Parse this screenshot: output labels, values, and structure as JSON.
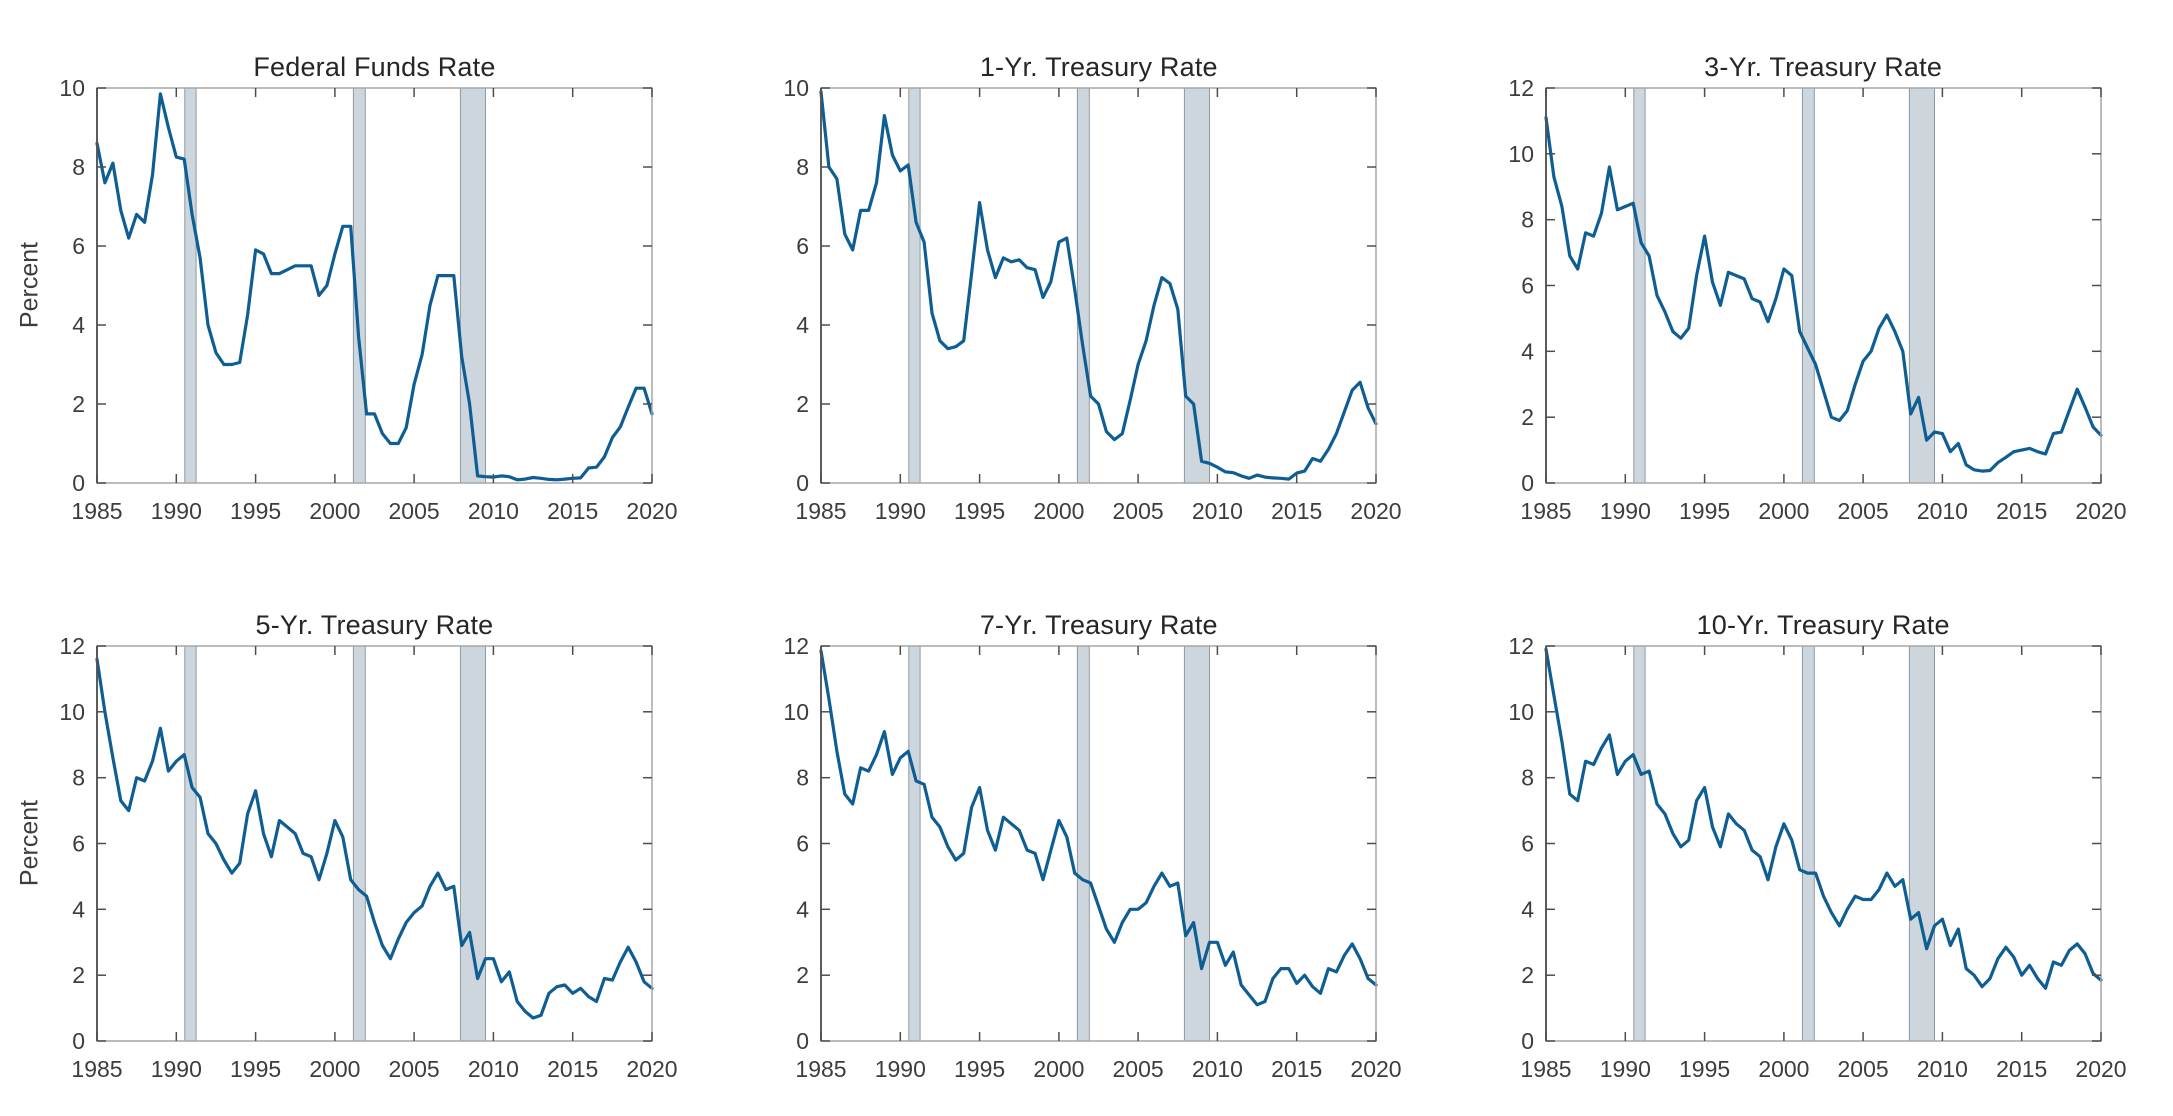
{
  "figure": {
    "ylabel": "Percent",
    "colors": {
      "background": "#ffffff",
      "line": "#0e5e94",
      "band_fill": "#ccd6dc",
      "band_edge": "#8e99a2",
      "box": "#a6a6a6",
      "spine": "#4f4f4f",
      "tick": "#4d4d4d",
      "text": "#3d3d3d",
      "title": "#262626"
    },
    "recession_bands": [
      [
        1990.54,
        1991.25
      ],
      [
        2001.17,
        2001.92
      ],
      [
        2007.92,
        2009.5
      ]
    ]
  },
  "chart_data": [
    {
      "type": "line",
      "title": "Federal Funds Rate",
      "ylabel": "Percent",
      "xlabel": "",
      "x_start": 1985,
      "x_step": 0.5,
      "xlim": [
        1985,
        2020
      ],
      "ylim": [
        0,
        10
      ],
      "x_ticks": [
        1985,
        1990,
        1995,
        2000,
        2005,
        2010,
        2015,
        2020
      ],
      "y_ticks": [
        0,
        2,
        4,
        6,
        8,
        10
      ],
      "grid": false,
      "values": [
        8.6,
        7.6,
        8.1,
        6.9,
        6.2,
        6.8,
        6.6,
        7.8,
        9.85,
        9.0,
        8.25,
        8.2,
        6.8,
        5.7,
        4.0,
        3.3,
        3.0,
        3.0,
        3.05,
        4.25,
        5.9,
        5.8,
        5.3,
        5.3,
        5.4,
        5.5,
        5.5,
        5.5,
        4.75,
        5.0,
        5.8,
        6.5,
        6.5,
        3.7,
        1.75,
        1.75,
        1.25,
        1.0,
        1.0,
        1.4,
        2.5,
        3.25,
        4.5,
        5.25,
        5.25,
        5.25,
        3.2,
        2.0,
        0.18,
        0.16,
        0.15,
        0.18,
        0.16,
        0.08,
        0.1,
        0.14,
        0.12,
        0.09,
        0.08,
        0.1,
        0.12,
        0.13,
        0.38,
        0.4,
        0.66,
        1.15,
        1.42,
        1.92,
        2.4,
        2.4,
        1.75
      ]
    },
    {
      "type": "line",
      "title": "1-Yr. Treasury Rate",
      "ylabel": "",
      "xlabel": "",
      "x_start": 1985,
      "x_step": 0.5,
      "xlim": [
        1985,
        2020
      ],
      "ylim": [
        0,
        10
      ],
      "x_ticks": [
        1985,
        1990,
        1995,
        2000,
        2005,
        2010,
        2015,
        2020
      ],
      "y_ticks": [
        0,
        2,
        4,
        6,
        8,
        10
      ],
      "grid": false,
      "values": [
        9.9,
        8.0,
        7.7,
        6.3,
        5.9,
        6.9,
        6.9,
        7.6,
        9.3,
        8.3,
        7.9,
        8.05,
        6.6,
        6.1,
        4.3,
        3.6,
        3.4,
        3.45,
        3.6,
        5.3,
        7.1,
        5.9,
        5.2,
        5.7,
        5.6,
        5.65,
        5.45,
        5.4,
        4.7,
        5.1,
        6.1,
        6.2,
        4.9,
        3.5,
        2.2,
        2.0,
        1.3,
        1.1,
        1.25,
        2.1,
        3.0,
        3.6,
        4.5,
        5.2,
        5.05,
        4.4,
        2.2,
        2.0,
        0.55,
        0.5,
        0.4,
        0.28,
        0.26,
        0.18,
        0.12,
        0.2,
        0.15,
        0.13,
        0.12,
        0.1,
        0.25,
        0.3,
        0.62,
        0.55,
        0.85,
        1.25,
        1.8,
        2.35,
        2.55,
        1.9,
        1.5
      ]
    },
    {
      "type": "line",
      "title": "3-Yr. Treasury Rate",
      "ylabel": "",
      "xlabel": "",
      "x_start": 1985,
      "x_step": 0.5,
      "xlim": [
        1985,
        2020
      ],
      "ylim": [
        0,
        12
      ],
      "x_ticks": [
        1985,
        1990,
        1995,
        2000,
        2005,
        2010,
        2015,
        2020
      ],
      "y_ticks": [
        0,
        2,
        4,
        6,
        8,
        10,
        12
      ],
      "grid": false,
      "values": [
        11.1,
        9.3,
        8.4,
        6.9,
        6.5,
        7.6,
        7.5,
        8.2,
        9.6,
        8.3,
        8.4,
        8.5,
        7.3,
        6.9,
        5.7,
        5.2,
        4.6,
        4.4,
        4.7,
        6.3,
        7.5,
        6.1,
        5.4,
        6.4,
        6.3,
        6.2,
        5.6,
        5.5,
        4.9,
        5.6,
        6.5,
        6.3,
        4.6,
        4.1,
        3.6,
        2.8,
        2.0,
        1.9,
        2.2,
        3.0,
        3.7,
        4.0,
        4.7,
        5.1,
        4.6,
        4.0,
        2.1,
        2.6,
        1.3,
        1.55,
        1.5,
        0.95,
        1.2,
        0.55,
        0.4,
        0.36,
        0.38,
        0.62,
        0.78,
        0.95,
        1.0,
        1.05,
        0.95,
        0.88,
        1.5,
        1.55,
        2.2,
        2.85,
        2.3,
        1.7,
        1.45
      ]
    },
    {
      "type": "line",
      "title": "5-Yr. Treasury Rate",
      "ylabel": "Percent",
      "xlabel": "",
      "x_start": 1985,
      "x_step": 0.5,
      "xlim": [
        1985,
        2020
      ],
      "ylim": [
        0,
        12
      ],
      "x_ticks": [
        1985,
        1990,
        1995,
        2000,
        2005,
        2010,
        2015,
        2020
      ],
      "y_ticks": [
        0,
        2,
        4,
        6,
        8,
        10,
        12
      ],
      "grid": false,
      "values": [
        11.6,
        10.0,
        8.6,
        7.3,
        7.0,
        8.0,
        7.9,
        8.5,
        9.5,
        8.2,
        8.5,
        8.7,
        7.7,
        7.4,
        6.3,
        6.0,
        5.5,
        5.1,
        5.4,
        6.9,
        7.6,
        6.3,
        5.6,
        6.7,
        6.5,
        6.3,
        5.7,
        5.6,
        4.9,
        5.7,
        6.7,
        6.2,
        4.9,
        4.6,
        4.4,
        3.6,
        2.9,
        2.5,
        3.1,
        3.6,
        3.9,
        4.1,
        4.7,
        5.1,
        4.6,
        4.7,
        2.9,
        3.3,
        1.9,
        2.5,
        2.5,
        1.8,
        2.1,
        1.2,
        0.9,
        0.7,
        0.78,
        1.45,
        1.65,
        1.7,
        1.45,
        1.6,
        1.35,
        1.2,
        1.9,
        1.85,
        2.4,
        2.85,
        2.4,
        1.8,
        1.6
      ]
    },
    {
      "type": "line",
      "title": "7-Yr. Treasury Rate",
      "ylabel": "",
      "xlabel": "",
      "x_start": 1985,
      "x_step": 0.5,
      "xlim": [
        1985,
        2020
      ],
      "ylim": [
        0,
        12
      ],
      "x_ticks": [
        1985,
        1990,
        1995,
        2000,
        2005,
        2010,
        2015,
        2020
      ],
      "y_ticks": [
        0,
        2,
        4,
        6,
        8,
        10,
        12
      ],
      "grid": false,
      "values": [
        11.85,
        10.4,
        8.8,
        7.5,
        7.2,
        8.3,
        8.2,
        8.7,
        9.4,
        8.1,
        8.6,
        8.8,
        7.9,
        7.8,
        6.8,
        6.5,
        5.9,
        5.5,
        5.7,
        7.1,
        7.7,
        6.4,
        5.8,
        6.8,
        6.6,
        6.4,
        5.8,
        5.7,
        4.9,
        5.8,
        6.7,
        6.2,
        5.1,
        4.9,
        4.8,
        4.1,
        3.4,
        3.0,
        3.6,
        4.0,
        4.0,
        4.2,
        4.7,
        5.1,
        4.7,
        4.8,
        3.2,
        3.6,
        2.2,
        3.0,
        3.0,
        2.3,
        2.7,
        1.7,
        1.4,
        1.1,
        1.2,
        1.9,
        2.2,
        2.2,
        1.75,
        2.0,
        1.65,
        1.45,
        2.2,
        2.1,
        2.6,
        2.95,
        2.5,
        1.9,
        1.7
      ]
    },
    {
      "type": "line",
      "title": "10-Yr. Treasury Rate",
      "ylabel": "",
      "xlabel": "",
      "x_start": 1985,
      "x_step": 0.5,
      "xlim": [
        1985,
        2020
      ],
      "ylim": [
        0,
        12
      ],
      "x_ticks": [
        1985,
        1990,
        1995,
        2000,
        2005,
        2010,
        2015,
        2020
      ],
      "y_ticks": [
        0,
        2,
        4,
        6,
        8,
        10,
        12
      ],
      "grid": false,
      "values": [
        11.9,
        10.5,
        9.1,
        7.5,
        7.3,
        8.5,
        8.4,
        8.9,
        9.3,
        8.1,
        8.5,
        8.7,
        8.1,
        8.2,
        7.2,
        6.9,
        6.3,
        5.9,
        6.1,
        7.3,
        7.7,
        6.5,
        5.9,
        6.9,
        6.6,
        6.4,
        5.8,
        5.6,
        4.9,
        5.9,
        6.6,
        6.1,
        5.2,
        5.1,
        5.1,
        4.4,
        3.9,
        3.5,
        4.0,
        4.4,
        4.3,
        4.3,
        4.6,
        5.1,
        4.7,
        4.9,
        3.7,
        3.9,
        2.8,
        3.5,
        3.7,
        2.9,
        3.4,
        2.2,
        2.0,
        1.65,
        1.9,
        2.5,
        2.85,
        2.55,
        2.0,
        2.3,
        1.9,
        1.6,
        2.4,
        2.3,
        2.75,
        2.95,
        2.65,
        2.05,
        1.85
      ]
    }
  ]
}
